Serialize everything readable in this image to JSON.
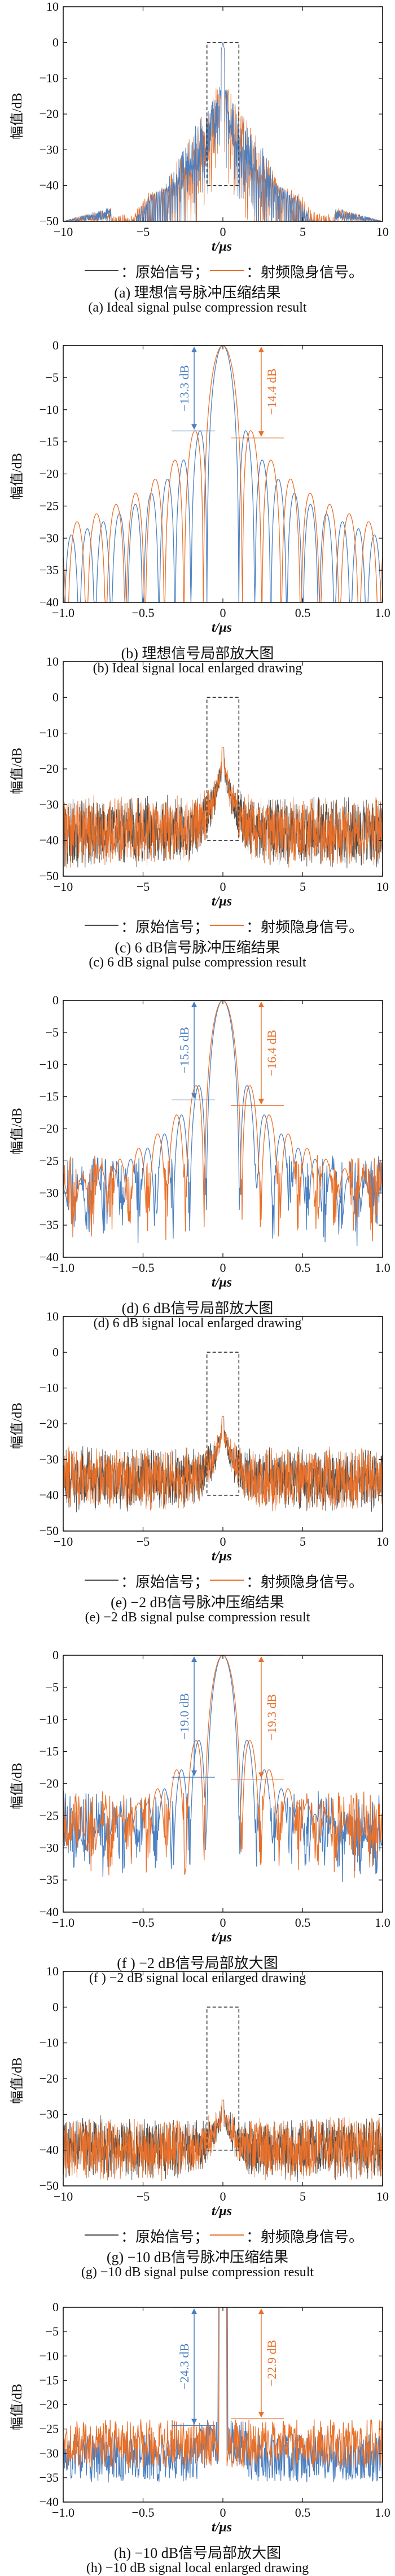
{
  "legend": {
    "original": "：原始信号；",
    "stealth": "：射频隐身信号。"
  },
  "colors": {
    "original": "#4b7fbf",
    "stealth": "#e8702a",
    "dark": "#4a4a4a",
    "box": "#333333"
  },
  "ylabel": "幅值/dB",
  "xlabel": "t/μs",
  "chart_data": [
    {
      "id": "a",
      "type": "line",
      "title_cn": "(a) 理想信号脉冲压缩结果",
      "title_en": "(a) Ideal signal pulse compression result",
      "xlim": [
        -10,
        10
      ],
      "ylim": [
        -50,
        10
      ],
      "xticks": [
        -10,
        -5,
        0,
        5,
        10
      ],
      "yticks": [
        10,
        0,
        -10,
        -20,
        -30,
        -40,
        -50
      ],
      "xticklabels": [
        "−10",
        "−5",
        "0",
        "5",
        "10"
      ],
      "yticklabels": [
        "10",
        "0",
        "−10",
        "−20",
        "−30",
        "−40",
        "−50"
      ],
      "zoom_box": {
        "x": [
          -1,
          1
        ],
        "y": [
          -40,
          0
        ]
      },
      "legend": true,
      "signal": {
        "kind": "ideal_full",
        "floor": -50
      }
    },
    {
      "id": "b",
      "type": "line",
      "title_cn": "(b) 理想信号局部放大图",
      "title_en": "(b) Ideal signal local enlarged drawing",
      "xlim": [
        -1,
        1
      ],
      "ylim": [
        -40,
        0
      ],
      "xticks": [
        -1,
        -0.5,
        0,
        0.5,
        1
      ],
      "yticks": [
        0,
        -5,
        -10,
        -15,
        -20,
        -25,
        -30,
        -35,
        -40
      ],
      "xticklabels": [
        "−1.0",
        "−0.5",
        "0",
        "0.5",
        "1.0"
      ],
      "yticklabels": [
        "0",
        "−5",
        "−10",
        "−15",
        "−20",
        "−25",
        "−30",
        "−35",
        "−40"
      ],
      "annotations": [
        {
          "text": "−13.3 dB",
          "series": "original",
          "value": -13.3,
          "side": "left"
        },
        {
          "text": "−14.4 dB",
          "series": "stealth",
          "value": -14.4,
          "side": "right"
        }
      ],
      "signal": {
        "kind": "ideal_zoom"
      }
    },
    {
      "id": "c",
      "type": "line",
      "title_cn": "(c) 6 dB信号脉冲压缩结果",
      "title_en": "(c) 6 dB signal pulse compression result",
      "xlim": [
        -10,
        10
      ],
      "ylim": [
        -50,
        10
      ],
      "xticks": [
        -10,
        -5,
        0,
        5,
        10
      ],
      "yticks": [
        10,
        0,
        -10,
        -20,
        -30,
        -40,
        -50
      ],
      "xticklabels": [
        "−10",
        "−5",
        "0",
        "5",
        "10"
      ],
      "yticklabels": [
        "10",
        "0",
        "−10",
        "−20",
        "−30",
        "−40",
        "−50"
      ],
      "zoom_box": {
        "x": [
          -1,
          1
        ],
        "y": [
          -40,
          0
        ]
      },
      "legend": true,
      "signal": {
        "kind": "noisy_full",
        "floor": -35,
        "spread": 8,
        "peak": -14
      }
    },
    {
      "id": "d",
      "type": "line",
      "title_cn": "(d) 6 dB信号局部放大图",
      "title_en": "(d) 6 dB signal local enlarged drawing",
      "xlim": [
        -1,
        1
      ],
      "ylim": [
        -40,
        0
      ],
      "xticks": [
        -1,
        -0.5,
        0,
        0.5,
        1
      ],
      "yticks": [
        0,
        -5,
        -10,
        -15,
        -20,
        -25,
        -30,
        -35,
        -40
      ],
      "xticklabels": [
        "−1.0",
        "−0.5",
        "0",
        "0.5",
        "1.0"
      ],
      "yticklabels": [
        "0",
        "−5",
        "−10",
        "−15",
        "−20",
        "−25",
        "−30",
        "−35",
        "−40"
      ],
      "annotations": [
        {
          "text": "−15.5 dB",
          "series": "original",
          "value": -15.5,
          "side": "left"
        },
        {
          "text": "−16.4 dB",
          "series": "stealth",
          "value": -16.4,
          "side": "right"
        }
      ],
      "signal": {
        "kind": "noisy_zoom",
        "floor": -30
      }
    },
    {
      "id": "e",
      "type": "line",
      "title_cn": "(e) −2 dB信号脉冲压缩结果",
      "title_en": "(e) −2 dB signal pulse compression result",
      "xlim": [
        -10,
        10
      ],
      "ylim": [
        -50,
        10
      ],
      "xticks": [
        -10,
        -5,
        0,
        5,
        10
      ],
      "yticks": [
        10,
        0,
        -10,
        -20,
        -30,
        -40,
        -50
      ],
      "xticklabels": [
        "−10",
        "−5",
        "0",
        "5",
        "10"
      ],
      "yticklabels": [
        "10",
        "0",
        "−10",
        "−20",
        "−30",
        "−40",
        "−50"
      ],
      "zoom_box": {
        "x": [
          -1,
          1
        ],
        "y": [
          -40,
          0
        ]
      },
      "legend": true,
      "signal": {
        "kind": "noisy_full",
        "floor": -33,
        "spread": 7,
        "peak": -18
      }
    },
    {
      "id": "f",
      "type": "line",
      "title_cn": "(f ) −2 dB信号局部放大图",
      "title_en": "(f ) −2 dB signal local enlarged drawing",
      "xlim": [
        -1,
        1
      ],
      "ylim": [
        -40,
        0
      ],
      "xticks": [
        -1,
        -0.5,
        0,
        0.5,
        1
      ],
      "yticks": [
        0,
        -5,
        -10,
        -15,
        -20,
        -25,
        -30,
        -35,
        -40
      ],
      "xticklabels": [
        "−1.0",
        "−0.5",
        "0",
        "0.5",
        "1.0"
      ],
      "yticklabels": [
        "0",
        "−5",
        "−10",
        "−15",
        "−20",
        "−25",
        "−30",
        "−35",
        "−40"
      ],
      "annotations": [
        {
          "text": "−19.0 dB",
          "series": "original",
          "value": -19.0,
          "side": "left"
        },
        {
          "text": "−19.3 dB",
          "series": "stealth",
          "value": -19.3,
          "side": "right"
        }
      ],
      "signal": {
        "kind": "noisy_zoom",
        "floor": -27
      }
    },
    {
      "id": "g",
      "type": "line",
      "title_cn": "(g) −10 dB信号脉冲压缩结果",
      "title_en": "(g) −10 dB signal pulse compression result",
      "xlim": [
        -10,
        10
      ],
      "ylim": [
        -50,
        10
      ],
      "xticks": [
        -10,
        -5,
        0,
        5,
        10
      ],
      "yticks": [
        10,
        0,
        -10,
        -20,
        -30,
        -40,
        -50
      ],
      "xticklabels": [
        "−10",
        "−5",
        "0",
        "5",
        "10"
      ],
      "yticklabels": [
        "10",
        "0",
        "−10",
        "−20",
        "−30",
        "−40",
        "−50"
      ],
      "zoom_box": {
        "x": [
          -1,
          1
        ],
        "y": [
          -40,
          0
        ]
      },
      "legend": true,
      "signal": {
        "kind": "noisy_full",
        "floor": -37,
        "spread": 7,
        "peak": -26
      }
    },
    {
      "id": "h",
      "type": "line",
      "title_cn": "(h) −10 dB信号局部放大图",
      "title_en": "(h) −10 dB signal local enlarged drawing",
      "xlim": [
        -1,
        1
      ],
      "ylim": [
        -40,
        0
      ],
      "xticks": [
        -1,
        -0.5,
        0,
        0.5,
        1
      ],
      "yticks": [
        0,
        -5,
        -10,
        -15,
        -20,
        -25,
        -30,
        -35,
        -40
      ],
      "xticklabels": [
        "−1.0",
        "−0.5",
        "0",
        "0.5",
        "1.0"
      ],
      "yticklabels": [
        "0",
        "−5",
        "−10",
        "−15",
        "−20",
        "−25",
        "−30",
        "−35",
        "−40"
      ],
      "annotations": [
        {
          "text": "−24.3 dB",
          "series": "original",
          "value": -24.3,
          "side": "left"
        },
        {
          "text": "−22.9 dB",
          "series": "stealth",
          "value": -22.9,
          "side": "right"
        }
      ],
      "signal": {
        "kind": "sparse_zoom",
        "floor": -28
      }
    }
  ]
}
